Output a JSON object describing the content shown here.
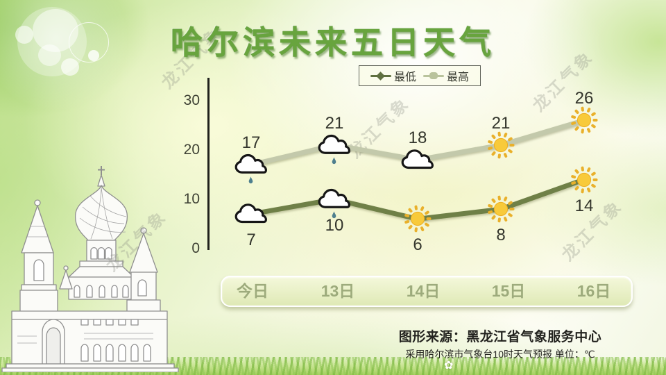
{
  "title": "哈尔滨未来五日天气",
  "legend": {
    "items": [
      {
        "label": "最低",
        "color": "#5f7040"
      },
      {
        "label": "最高",
        "color": "#b9c39c"
      }
    ]
  },
  "chart_data": {
    "type": "line",
    "categories": [
      "今日",
      "13日",
      "14日",
      "15日",
      "16日"
    ],
    "series": [
      {
        "name": "最高",
        "color": "#c3c9ab",
        "values": [
          17,
          21,
          18,
          21,
          26
        ],
        "icons": [
          "rain-cloud",
          "rain-cloud",
          "cloud",
          "sun",
          "sun"
        ]
      },
      {
        "name": "最低",
        "color": "#6f8047",
        "values": [
          7,
          10,
          6,
          8,
          14
        ],
        "icons": [
          "cloud",
          "rain-cloud",
          "sun",
          "sun",
          "sun"
        ]
      }
    ],
    "yticks": [
      30,
      20,
      10,
      0
    ],
    "ylim": [
      0,
      33
    ],
    "grid": false,
    "legend_position": "top-center",
    "unit": "℃"
  },
  "footer": {
    "source": "图形来源：黑龙江省气象服务中心",
    "note": "采用哈尔滨市气象台10时天气预报 单位：℃"
  },
  "watermark": {
    "text": "龙江气象"
  },
  "icons": {
    "flower": "✿"
  }
}
